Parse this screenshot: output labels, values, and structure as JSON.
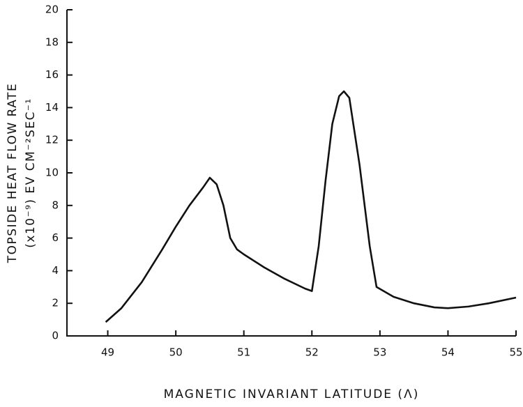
{
  "chart_data": {
    "type": "line",
    "xlabel": "MAGNETIC INVARIANT LATITUDE (Λ)",
    "ylabel": [
      "TOPSIDE HEAT FLOW RATE",
      "(x10⁻⁹) EV CM⁻²SEC⁻¹"
    ],
    "x": [
      48.97,
      49.2,
      49.5,
      49.8,
      50.0,
      50.2,
      50.4,
      50.5,
      50.6,
      50.7,
      50.8,
      50.9,
      51.0,
      51.3,
      51.6,
      51.9,
      52.0,
      52.1,
      52.2,
      52.3,
      52.4,
      52.47,
      52.55,
      52.7,
      52.85,
      52.95,
      53.2,
      53.5,
      53.8,
      54.0,
      54.3,
      54.6,
      55.0
    ],
    "series": [
      {
        "color": "#111111",
        "values": [
          0.85,
          1.7,
          3.3,
          5.3,
          6.7,
          8.0,
          9.1,
          9.7,
          9.3,
          8.0,
          6.0,
          5.3,
          5.0,
          4.2,
          3.5,
          2.9,
          2.75,
          5.5,
          9.5,
          13.0,
          14.7,
          15.0,
          14.6,
          10.5,
          5.5,
          3.0,
          2.4,
          2.0,
          1.75,
          1.7,
          1.8,
          2.0,
          2.35
        ]
      }
    ],
    "xlim": [
      48.4,
      55
    ],
    "xticks": [
      49,
      50,
      51,
      52,
      53,
      54,
      55
    ],
    "ylim": [
      0,
      20
    ],
    "yticks": [
      0,
      2,
      4,
      6,
      8,
      10,
      12,
      14,
      16,
      18,
      20
    ]
  }
}
